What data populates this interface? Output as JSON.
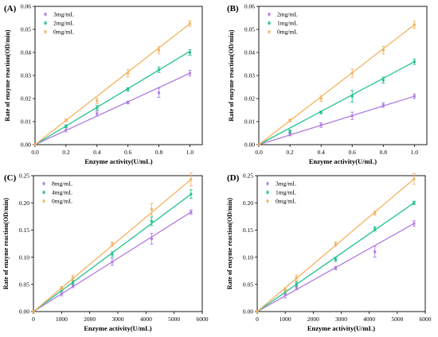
{
  "chart_data": [
    {
      "panel_label": "(A)",
      "type": "line",
      "xlabel": "Enzyme activity(U/mL)",
      "ylabel": "Rate of enzyme reaction(OD/min)",
      "xlim": [
        0,
        1.08
      ],
      "ylim": [
        0,
        0.06
      ],
      "xticks": [
        "0.0",
        "0.2",
        "0.4",
        "0.6",
        "0.8",
        "1.0"
      ],
      "xtick_values": [
        0,
        0.2,
        0.4,
        0.6,
        0.8,
        1.0
      ],
      "yticks": [
        "0.00",
        "0.01",
        "0.02",
        "0.03",
        "0.04",
        "0.05",
        "0.06"
      ],
      "ytick_values": [
        0,
        0.01,
        0.02,
        0.03,
        0.04,
        0.05,
        0.06
      ],
      "legend_position": "top-left",
      "x": [
        0,
        0.2,
        0.4,
        0.6,
        0.8,
        1.0
      ],
      "series": [
        {
          "name": "3mg/mL",
          "color": "#b07ce0",
          "values": [
            0,
            0.0065,
            0.0135,
            0.0183,
            0.0225,
            0.031
          ],
          "errors": [
            0,
            0.001,
            0.001,
            0.0006,
            0.002,
            0.0012
          ],
          "fit": [
            0,
            0.031
          ]
        },
        {
          "name": "2mg/mL",
          "color": "#22c28e",
          "values": [
            0,
            0.008,
            0.016,
            0.024,
            0.0325,
            0.04
          ],
          "errors": [
            0,
            0.0006,
            0.001,
            0.0007,
            0.0012,
            0.0012
          ],
          "fit": [
            0,
            0.0405
          ]
        },
        {
          "name": "0mg/mL",
          "color": "#f2b462",
          "values": [
            0,
            0.0105,
            0.019,
            0.031,
            0.041,
            0.0525
          ],
          "errors": [
            0,
            0.0006,
            0.0012,
            0.0016,
            0.0015,
            0.0012
          ],
          "fit": [
            0,
            0.0525
          ]
        }
      ]
    },
    {
      "panel_label": "(B)",
      "type": "line",
      "xlabel": "Enzyme activity(U/mL)",
      "ylabel": "Rate of enzyme reaction(OD/min)",
      "xlim": [
        0,
        1.08
      ],
      "ylim": [
        0,
        0.06
      ],
      "xticks": [
        "0.0",
        "0.2",
        "0.4",
        "0.6",
        "0.8",
        "1.0"
      ],
      "xtick_values": [
        0,
        0.2,
        0.4,
        0.6,
        0.8,
        1.0
      ],
      "yticks": [
        "0.00",
        "0.01",
        "0.02",
        "0.03",
        "0.04",
        "0.05",
        "0.06"
      ],
      "ytick_values": [
        0,
        0.01,
        0.02,
        0.03,
        0.04,
        0.05,
        0.06
      ],
      "legend_position": "top-left",
      "x": [
        0,
        0.2,
        0.4,
        0.6,
        0.8,
        1.0
      ],
      "series": [
        {
          "name": "2mg/mL",
          "color": "#b07ce0",
          "values": [
            0,
            0.0045,
            0.0085,
            0.0125,
            0.0172,
            0.021
          ],
          "errors": [
            0,
            0.0007,
            0.001,
            0.0016,
            0.001,
            0.001
          ],
          "fit": [
            0,
            0.021
          ]
        },
        {
          "name": "1mg/mL",
          "color": "#22c28e",
          "values": [
            0,
            0.0058,
            0.014,
            0.021,
            0.028,
            0.036
          ],
          "errors": [
            0,
            0.0006,
            0.0006,
            0.0025,
            0.0013,
            0.0012
          ],
          "fit": [
            0,
            0.036
          ]
        },
        {
          "name": "0mg/mL",
          "color": "#f2b462",
          "values": [
            0,
            0.0105,
            0.02,
            0.031,
            0.041,
            0.052
          ],
          "errors": [
            0,
            0.0006,
            0.0012,
            0.0018,
            0.0016,
            0.0015
          ],
          "fit": [
            0,
            0.052
          ]
        }
      ]
    },
    {
      "panel_label": "(C)",
      "type": "line",
      "xlabel": "Enzyme activity(U/mL)",
      "ylabel": "Rate of enzyme reaction(OD/min)",
      "xlim": [
        0,
        6000
      ],
      "ylim": [
        0,
        0.25
      ],
      "xticks": [
        "0",
        "1000",
        "2000",
        "3000",
        "4000",
        "5000",
        "6000"
      ],
      "xtick_values": [
        0,
        1000,
        2000,
        3000,
        4000,
        5000,
        6000
      ],
      "yticks": [
        "0.00",
        "0.05",
        "0.10",
        "0.15",
        "0.20",
        "0.25"
      ],
      "ytick_values": [
        0,
        0.05,
        0.1,
        0.15,
        0.2,
        0.25
      ],
      "legend_position": "top-left",
      "x": [
        0,
        1000,
        1400,
        2800,
        4200,
        5600
      ],
      "series": [
        {
          "name": "8mg/mL",
          "color": "#b07ce0",
          "values": [
            0,
            0.033,
            0.048,
            0.091,
            0.134,
            0.183
          ],
          "errors": [
            0,
            0.004,
            0.004,
            0.006,
            0.01,
            0.004
          ],
          "fit": [
            0,
            0.183
          ]
        },
        {
          "name": "4mg/mL",
          "color": "#22c28e",
          "values": [
            0,
            0.04,
            0.054,
            0.105,
            0.166,
            0.216
          ],
          "errors": [
            0,
            0.003,
            0.004,
            0.005,
            0.008,
            0.008
          ],
          "fit": [
            0,
            0.216
          ]
        },
        {
          "name": "0mg/mL",
          "color": "#f2b462",
          "values": [
            0,
            0.043,
            0.062,
            0.124,
            0.188,
            0.243
          ],
          "errors": [
            0,
            0.003,
            0.005,
            0.004,
            0.011,
            0.012
          ],
          "fit": [
            0,
            0.243
          ]
        }
      ]
    },
    {
      "panel_label": "(D)",
      "type": "line",
      "xlabel": "Enzyme activity(U/mL)",
      "ylabel": "Rate of enzyme reaction(OD/min)",
      "xlim": [
        0,
        6000
      ],
      "ylim": [
        0,
        0.25
      ],
      "xticks": [
        "0",
        "1000",
        "2000",
        "3000",
        "4000",
        "5000",
        "6000"
      ],
      "xtick_values": [
        0,
        1000,
        2000,
        3000,
        4000,
        5000,
        6000
      ],
      "yticks": [
        "0.00",
        "0.05",
        "0.10",
        "0.15",
        "0.20",
        "0.25"
      ],
      "ytick_values": [
        0,
        0.05,
        0.1,
        0.15,
        0.2,
        0.25
      ],
      "legend_position": "top-left",
      "x": [
        0,
        1000,
        1400,
        2800,
        4200,
        5600
      ],
      "series": [
        {
          "name": "3mg/mL",
          "color": "#b07ce0",
          "values": [
            0,
            0.031,
            0.044,
            0.08,
            0.11,
            0.162
          ],
          "errors": [
            0,
            0.006,
            0.004,
            0.003,
            0.01,
            0.005
          ],
          "fit": [
            0,
            0.162
          ]
        },
        {
          "name": "1mg/mL",
          "color": "#22c28e",
          "values": [
            0,
            0.037,
            0.051,
            0.096,
            0.152,
            0.2
          ],
          "errors": [
            0,
            0.003,
            0.004,
            0.004,
            0.004,
            0.003
          ],
          "fit": [
            0,
            0.2
          ]
        },
        {
          "name": "0mg/mL",
          "color": "#f2b462",
          "values": [
            0,
            0.04,
            0.062,
            0.124,
            0.181,
            0.244
          ],
          "errors": [
            0,
            0.004,
            0.005,
            0.004,
            0.004,
            0.01
          ],
          "fit": [
            0,
            0.244
          ]
        }
      ]
    }
  ]
}
